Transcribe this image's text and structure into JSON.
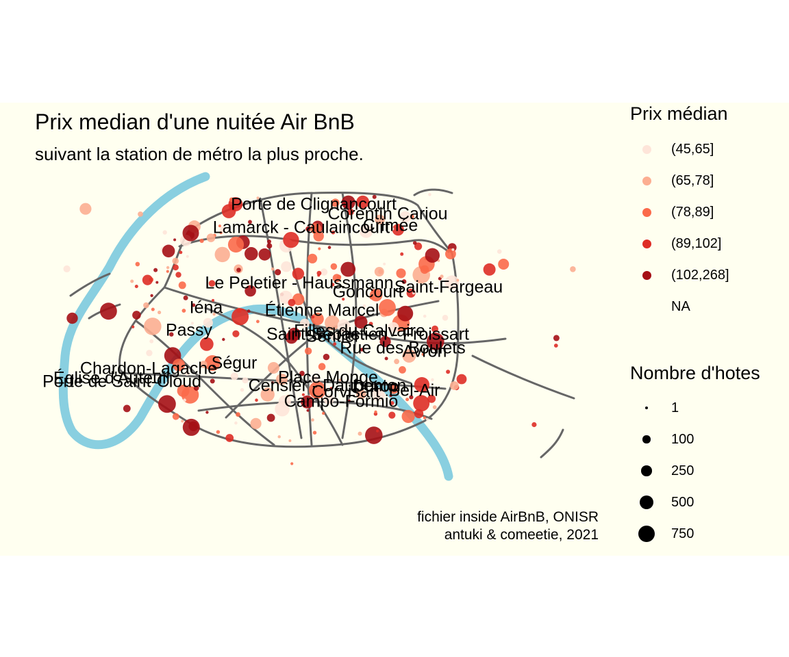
{
  "title": "Prix median d'une nuitée Air BnB",
  "subtitle": "suivant la station de métro la plus proche.",
  "caption": {
    "line1": "fichier inside AirBnB, ONISR",
    "line2": "antuki & comeetie, 2021"
  },
  "legend_price": {
    "title": "Prix médian",
    "items": [
      {
        "label": "(45,65]",
        "color": "#fee5d9"
      },
      {
        "label": "(65,78]",
        "color": "#fcae91"
      },
      {
        "label": "(78,89]",
        "color": "#fb6a4a"
      },
      {
        "label": "(89,102]",
        "color": "#de2d26"
      },
      {
        "label": "(102,268]",
        "color": "#a50f15"
      },
      {
        "label": "NA",
        "color": ""
      }
    ]
  },
  "legend_hosts": {
    "title": "Nombre d'hotes",
    "items": [
      {
        "label": "1",
        "value": 1
      },
      {
        "label": "100",
        "value": 100
      },
      {
        "label": "250",
        "value": 250
      },
      {
        "label": "500",
        "value": 500
      },
      {
        "label": "750",
        "value": 750
      }
    ]
  },
  "colors": {
    "background": "#fffff0",
    "river": "#89cfe0",
    "metro": "#666666"
  },
  "station_labels": [
    "Porte de Clignancourt",
    "Corentin Cariou",
    "Crimée",
    "Lamarck - Caulaincourt",
    "Le Peletier - Haussmann",
    "Saint-Fargeau",
    "Goncourt",
    "Iéna",
    "Étienne Marcel",
    "Passy",
    "Filles du Calvaire",
    "Sentier",
    "Saint-Sébastien - Froissart",
    "Rue des Boulets",
    "Avron",
    "Chardon-Lagache",
    "Église d'Auteuil",
    "Ségur",
    "Porte de Saint-Cloud",
    "Place Monge",
    "Censier - Daubenton",
    "Duroc",
    "Bel-Air",
    "Campo-Formio",
    "Corvisart"
  ]
}
